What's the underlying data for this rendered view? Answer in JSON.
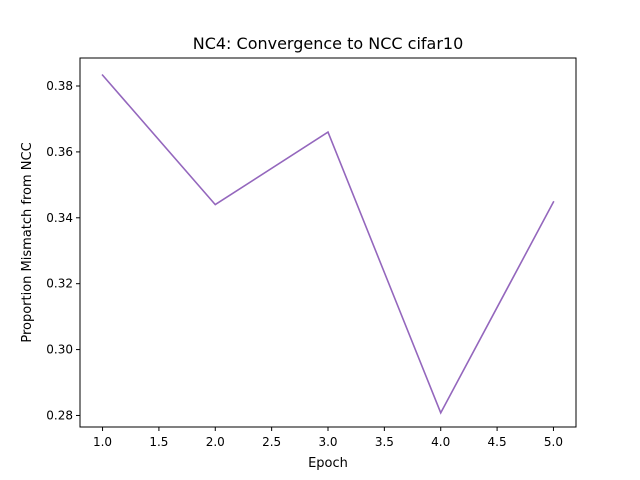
{
  "chart_data": {
    "type": "line",
    "title": "NC4: Convergence to NCC cifar10",
    "xlabel": "Epoch",
    "ylabel": "Proportion Mismatch from NCC",
    "xlim": [
      0.8,
      5.2
    ],
    "ylim": [
      0.2765,
      0.3885
    ],
    "x_ticks": [
      1.0,
      1.5,
      2.0,
      2.5,
      3.0,
      3.5,
      4.0,
      4.5,
      5.0
    ],
    "x_tick_labels": [
      "1.0",
      "1.5",
      "2.0",
      "2.5",
      "3.0",
      "3.5",
      "4.0",
      "4.5",
      "5.0"
    ],
    "y_ticks": [
      0.28,
      0.3,
      0.32,
      0.34,
      0.36,
      0.38
    ],
    "y_tick_labels": [
      "0.28",
      "0.30",
      "0.32",
      "0.34",
      "0.36",
      "0.38"
    ],
    "grid": false,
    "legend": "none",
    "series": [
      {
        "x": [
          1,
          2,
          3,
          4,
          5
        ],
        "values": [
          0.3833,
          0.344,
          0.366,
          0.2808,
          0.3448
        ],
        "color": "#9467bd"
      }
    ]
  }
}
